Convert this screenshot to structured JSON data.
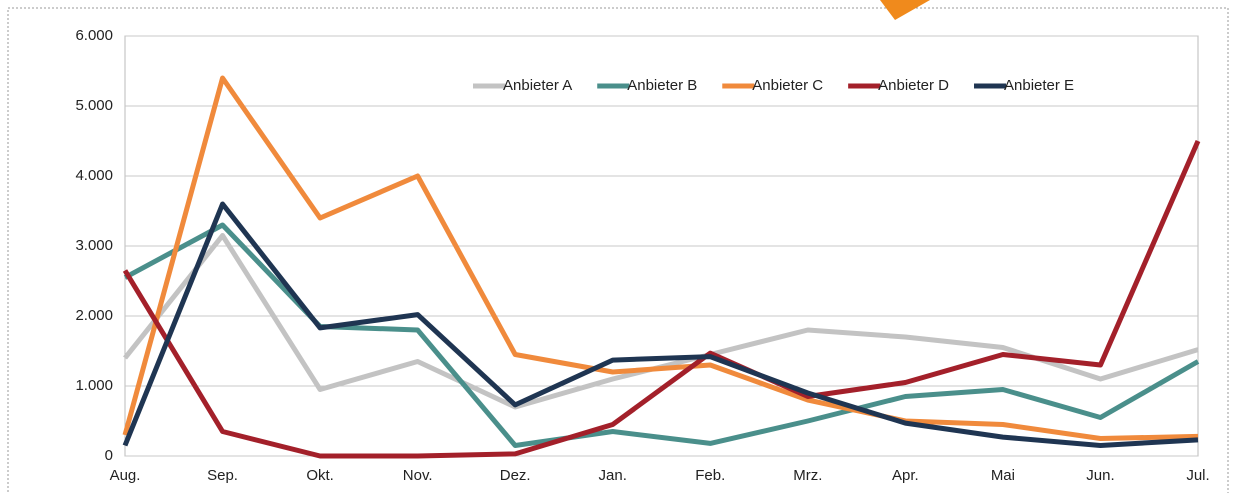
{
  "chart_data": {
    "type": "line",
    "categories": [
      "Aug.",
      "Sep.",
      "Okt.",
      "Nov.",
      "Dez.",
      "Jan.",
      "Feb.",
      "Mrz.",
      "Apr.",
      "Mai",
      "Jun.",
      "Jul."
    ],
    "series": [
      {
        "name": "Anbieter A",
        "color": "#c3c3c3",
        "values": [
          1400,
          3150,
          950,
          1350,
          700,
          1100,
          1450,
          1800,
          1700,
          1550,
          1100,
          1520
        ]
      },
      {
        "name": "Anbieter B",
        "color": "#4a8f8b",
        "values": [
          2550,
          3300,
          1850,
          1800,
          150,
          350,
          180,
          500,
          850,
          950,
          550,
          1350
        ]
      },
      {
        "name": "Anbieter C",
        "color": "#f08a3c",
        "values": [
          300,
          5400,
          3400,
          4000,
          1450,
          1200,
          1300,
          800,
          500,
          450,
          250,
          280
        ]
      },
      {
        "name": "Anbieter D",
        "color": "#a3202a",
        "values": [
          2650,
          350,
          0,
          0,
          30,
          450,
          1470,
          850,
          1050,
          1450,
          1300,
          4500
        ]
      },
      {
        "name": "Anbieter E",
        "color": "#1f3552",
        "values": [
          150,
          3600,
          1830,
          2020,
          730,
          1370,
          1420,
          900,
          470,
          270,
          150,
          230
        ]
      }
    ],
    "ylim": [
      0,
      6000
    ],
    "yticks": [
      0,
      {
        "value": 1000,
        "label": "1.000"
      },
      {
        "value": 2000,
        "label": "2.000"
      },
      {
        "value": 3000,
        "label": "3.000"
      },
      {
        "value": 4000,
        "label": "4.000"
      },
      {
        "value": 5000,
        "label": "5.000"
      },
      {
        "value": 6000,
        "label": "6.000"
      }
    ],
    "grid": true,
    "legend": "top-right"
  }
}
